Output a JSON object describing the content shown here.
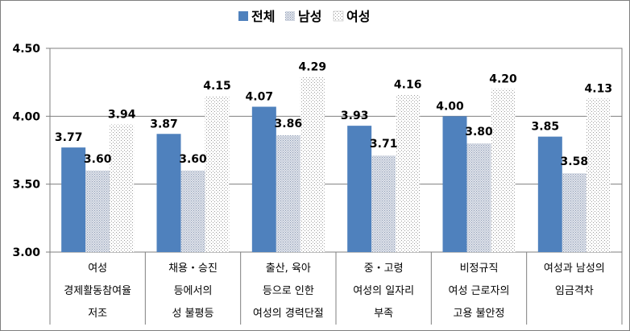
{
  "chart_data": {
    "type": "bar",
    "title": "",
    "xlabel": "",
    "ylabel": "",
    "ylim": [
      3.0,
      4.5
    ],
    "yticks": [
      "3.00",
      "3.50",
      "4.00",
      "4.50"
    ],
    "legend_position": "top",
    "categories": [
      [
        "여성",
        "경제활동참여율",
        "저조"
      ],
      [
        "채용・승진",
        "등에서의",
        "성 불평등"
      ],
      [
        "출산, 육아",
        "등으로 인한",
        "여성의 경력단절"
      ],
      [
        "중・고령",
        "여성의 일자리",
        "부족"
      ],
      [
        "비정규직",
        "여성 근로자의",
        "고용 불안정"
      ],
      [
        "여성과 남성의",
        "임금격차"
      ]
    ],
    "series": [
      {
        "name": "전체",
        "color": "#4f81bd",
        "pattern": "solid",
        "values": [
          3.77,
          3.87,
          4.07,
          3.93,
          4.0,
          3.85
        ],
        "labels": [
          "3.77",
          "3.87",
          "4.07",
          "3.93",
          "4.00",
          "3.85"
        ]
      },
      {
        "name": "남성",
        "color": "#c3cbd9",
        "pattern": "fine-dots",
        "values": [
          3.6,
          3.6,
          3.86,
          3.71,
          3.8,
          3.58
        ],
        "labels": [
          "3.60",
          "3.60",
          "3.86",
          "3.71",
          "3.80",
          "3.58"
        ]
      },
      {
        "name": "여성",
        "color": "#d4d4d4",
        "pattern": "sparse-dots",
        "values": [
          3.94,
          4.15,
          4.29,
          4.16,
          4.2,
          4.13
        ],
        "labels": [
          "3.94",
          "4.15",
          "4.29",
          "4.16",
          "4.20",
          "4.13"
        ]
      }
    ]
  }
}
